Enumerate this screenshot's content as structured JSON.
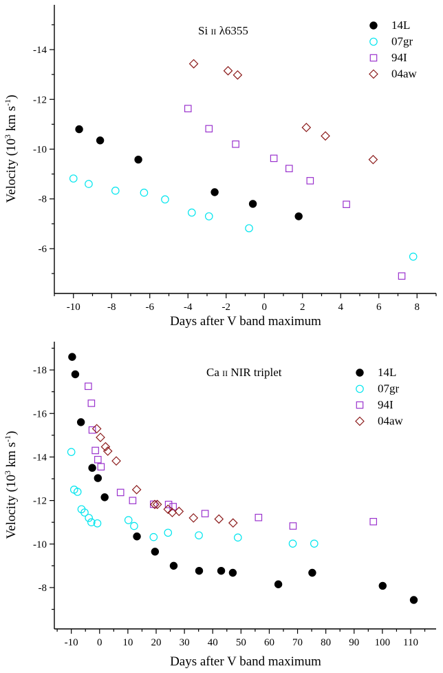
{
  "chart_data": [
    {
      "type": "scatter",
      "title": "Si II λ6355",
      "title_parts": {
        "element": "Si",
        "ion": "II",
        "wavelength": "λ6355"
      },
      "xlabel": "Days after V band maximum",
      "ylabel": "Velocity (10^3 km s^-1)",
      "ylabel_parts": {
        "prefix": "Velocity (10",
        "exp1": "3",
        "mid": " km s",
        "exp2": "-1",
        "suffix": ")"
      },
      "xlim": [
        -11,
        9
      ],
      "ylim": [
        -4.2,
        -15.8
      ],
      "y_reversed": true,
      "xticks": [
        -10,
        -8,
        -6,
        -4,
        -2,
        0,
        2,
        4,
        6,
        8
      ],
      "yticks": [
        -6,
        -8,
        -10,
        -12,
        -14
      ],
      "legend_position": "top-right",
      "grid": false,
      "series": [
        {
          "name": "14L",
          "marker": "filled-circle",
          "color": "#000000",
          "points": [
            [
              -9.7,
              -10.8
            ],
            [
              -8.6,
              -10.35
            ],
            [
              -6.6,
              -9.58
            ],
            [
              -2.6,
              -8.27
            ],
            [
              -0.6,
              -7.8
            ],
            [
              1.8,
              -7.3
            ]
          ]
        },
        {
          "name": "07gr",
          "marker": "open-circle",
          "color": "#00e5ee",
          "points": [
            [
              -10.0,
              -8.82
            ],
            [
              -9.2,
              -8.6
            ],
            [
              -7.8,
              -8.33
            ],
            [
              -6.3,
              -8.25
            ],
            [
              -5.2,
              -7.98
            ],
            [
              -3.8,
              -7.45
            ],
            [
              -2.9,
              -7.3
            ],
            [
              -0.8,
              -6.82
            ],
            [
              7.8,
              -5.68
            ]
          ]
        },
        {
          "name": "94I",
          "marker": "open-square",
          "color": "#9a32cd",
          "points": [
            [
              -4.0,
              -11.63
            ],
            [
              -2.9,
              -10.82
            ],
            [
              -1.5,
              -10.2
            ],
            [
              0.5,
              -9.63
            ],
            [
              1.3,
              -9.22
            ],
            [
              2.4,
              -8.73
            ],
            [
              4.3,
              -7.78
            ],
            [
              7.2,
              -4.9
            ]
          ]
        },
        {
          "name": "04aw",
          "marker": "open-diamond",
          "color": "#8b1a1a",
          "points": [
            [
              -3.7,
              -13.43
            ],
            [
              -1.9,
              -13.15
            ],
            [
              -1.4,
              -12.98
            ],
            [
              2.2,
              -10.87
            ],
            [
              3.2,
              -10.53
            ],
            [
              5.7,
              -9.58
            ]
          ]
        }
      ]
    },
    {
      "type": "scatter",
      "title": "Ca II NIR triplet",
      "title_parts": {
        "element": "Ca",
        "ion": "II",
        "rest": "NIR triplet"
      },
      "xlabel": "Days after V band maximum",
      "ylabel": "Velocity (10^3 km s^-1)",
      "ylabel_parts": {
        "prefix": "Velocity (10",
        "exp1": "3",
        "mid": " km s",
        "exp2": "-1",
        "suffix": ")"
      },
      "xlim": [
        -16,
        119
      ],
      "ylim": [
        -6.1,
        -19.3
      ],
      "y_reversed": true,
      "xticks": [
        -10,
        0,
        10,
        20,
        30,
        40,
        50,
        60,
        70,
        80,
        90,
        100,
        110
      ],
      "yticks": [
        -8,
        -10,
        -12,
        -14,
        -16,
        -18
      ],
      "legend_position": "top-right",
      "grid": false,
      "series": [
        {
          "name": "14L",
          "marker": "filled-circle",
          "color": "#000000",
          "points": [
            [
              -9.7,
              -18.6
            ],
            [
              -8.6,
              -17.8
            ],
            [
              -6.6,
              -15.6
            ],
            [
              -2.6,
              -13.5
            ],
            [
              -0.6,
              -13.03
            ],
            [
              1.8,
              -12.15
            ],
            [
              13.2,
              -10.35
            ],
            [
              19.6,
              -9.65
            ],
            [
              26.2,
              -9.0
            ],
            [
              35.2,
              -8.77
            ],
            [
              43.0,
              -8.77
            ],
            [
              47.1,
              -8.68
            ],
            [
              63.2,
              -8.15
            ],
            [
              75.2,
              -8.68
            ],
            [
              100.1,
              -8.08
            ],
            [
              111.1,
              -7.43
            ]
          ]
        },
        {
          "name": "07gr",
          "marker": "open-circle",
          "color": "#00e5ee",
          "points": [
            [
              -10.0,
              -14.23
            ],
            [
              -9.0,
              -12.5
            ],
            [
              -7.8,
              -12.4
            ],
            [
              -6.4,
              -11.6
            ],
            [
              -5.3,
              -11.45
            ],
            [
              -3.8,
              -11.2
            ],
            [
              -2.9,
              -11.0
            ],
            [
              -0.8,
              -10.95
            ],
            [
              10.2,
              -11.1
            ],
            [
              12.2,
              -10.83
            ],
            [
              19.1,
              -10.32
            ],
            [
              24.2,
              -10.52
            ],
            [
              35.1,
              -10.4
            ],
            [
              48.9,
              -10.3
            ],
            [
              68.3,
              -10.02
            ],
            [
              75.9,
              -10.02
            ]
          ]
        },
        {
          "name": "94I",
          "marker": "open-square",
          "color": "#9a32cd",
          "points": [
            [
              -4.0,
              -17.25
            ],
            [
              -2.9,
              -16.47
            ],
            [
              -2.6,
              -15.24
            ],
            [
              -1.5,
              -14.3
            ],
            [
              -0.6,
              -13.88
            ],
            [
              0.5,
              -13.55
            ],
            [
              7.4,
              -12.37
            ],
            [
              11.7,
              -12.0
            ],
            [
              19.1,
              -11.83
            ],
            [
              24.4,
              -11.82
            ],
            [
              26.0,
              -11.72
            ],
            [
              37.3,
              -11.4
            ],
            [
              56.2,
              -11.22
            ],
            [
              68.4,
              -10.83
            ],
            [
              96.8,
              -11.03
            ]
          ]
        },
        {
          "name": "04aw",
          "marker": "open-diamond",
          "color": "#8b1a1a",
          "points": [
            [
              -1.0,
              -15.3
            ],
            [
              0.3,
              -14.9
            ],
            [
              2.1,
              -14.47
            ],
            [
              2.9,
              -14.27
            ],
            [
              5.9,
              -13.82
            ],
            [
              13.1,
              -12.5
            ],
            [
              19.5,
              -11.82
            ],
            [
              20.4,
              -11.82
            ],
            [
              24.2,
              -11.6
            ],
            [
              25.7,
              -11.45
            ],
            [
              28.1,
              -11.5
            ],
            [
              33.2,
              -11.2
            ],
            [
              42.2,
              -11.15
            ],
            [
              47.2,
              -10.97
            ]
          ]
        }
      ]
    }
  ]
}
